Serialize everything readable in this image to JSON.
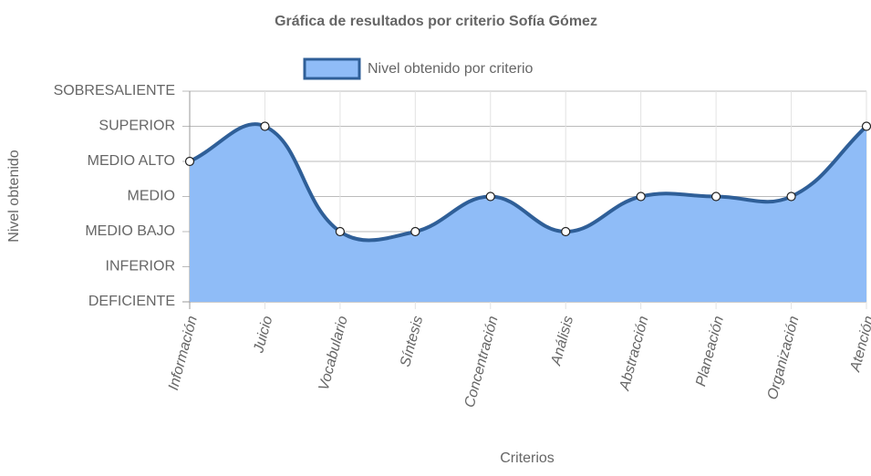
{
  "chart_data": {
    "type": "line",
    "title": "Gráfica de resultados por criterio Sofía Gómez",
    "x_label": "Criterios",
    "y_label": "Nivel obtenido",
    "categories": [
      "Información",
      "Juicio",
      "Vocabulario",
      "Síntesis",
      "Concentración",
      "Análisis",
      "Abstracción",
      "Planeación",
      "Organización",
      "Atención"
    ],
    "series": [
      {
        "name": "Nivel obtenido por criterio",
        "color": "#8fbcf7",
        "line_color": "#2f5f98",
        "values": [
          5,
          6,
          3,
          3,
          4,
          3,
          4,
          4,
          4,
          6
        ]
      }
    ],
    "ylim": [
      1,
      7
    ],
    "yticks": [
      {
        "value": 1,
        "label": "DEFICIENTE"
      },
      {
        "value": 2,
        "label": "INFERIOR"
      },
      {
        "value": 3,
        "label": "MEDIO BAJO"
      },
      {
        "value": 4,
        "label": "MEDIO"
      },
      {
        "value": 5,
        "label": "MEDIO ALTO"
      },
      {
        "value": 6,
        "label": "SUPERIOR"
      },
      {
        "value": 7,
        "label": "SOBRESALIENTE"
      }
    ],
    "grid": true,
    "fill": true
  }
}
